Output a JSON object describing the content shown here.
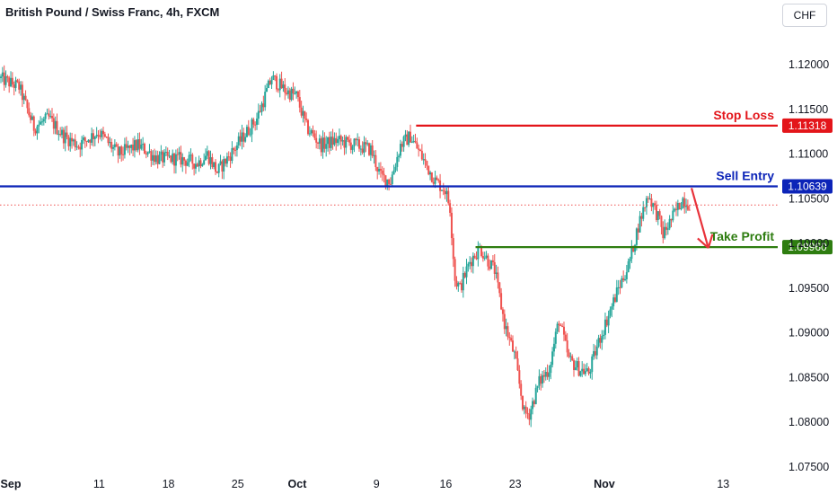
{
  "header": {
    "title": "British Pound / Swiss Franc, 4h, FXCM",
    "currency_button": "CHF"
  },
  "colors": {
    "up": "#26a69a",
    "down": "#ef5350",
    "stop_loss": "#e3151a",
    "sell_entry": "#0c24b8",
    "take_profit": "#2e7d10",
    "last_price_line": "#ef5350",
    "arrow": "#e8323a"
  },
  "chart_data": {
    "type": "candlestick",
    "timeframe": "4h",
    "instrument": "GBPCHF",
    "ylim": [
      1.075,
      1.125
    ],
    "y_ticks": [
      "1.12000",
      "1.11500",
      "1.11000",
      "1.10500",
      "1.10000",
      "1.09500",
      "1.09000",
      "1.08500",
      "1.08000",
      "1.07500"
    ],
    "y_tick_values": [
      1.12,
      1.115,
      1.11,
      1.105,
      1.1,
      1.095,
      1.09,
      1.085,
      1.08,
      1.075
    ],
    "x_ticks": [
      "Sep",
      "11",
      "18",
      "25",
      "Oct",
      "9",
      "16",
      "23",
      "Nov",
      "13"
    ],
    "x_tick_days": [
      0,
      10,
      17,
      24,
      30,
      38,
      45,
      52,
      61,
      73
    ],
    "x_range_days": [
      0,
      78.5
    ],
    "bold_ticks": [
      "Sep",
      "Oct",
      "Nov"
    ],
    "price_path": [
      [
        0,
        1.1185
      ],
      [
        2,
        1.1175
      ],
      [
        3.5,
        1.113
      ],
      [
        5,
        1.114
      ],
      [
        6.5,
        1.112
      ],
      [
        8,
        1.111
      ],
      [
        10,
        1.1125
      ],
      [
        12,
        1.11
      ],
      [
        14,
        1.111
      ],
      [
        16,
        1.1095
      ],
      [
        18,
        1.1095
      ],
      [
        20,
        1.109
      ],
      [
        21,
        1.11
      ],
      [
        22,
        1.108
      ],
      [
        24,
        1.111
      ],
      [
        26,
        1.114
      ],
      [
        27.5,
        1.1185
      ],
      [
        29,
        1.117
      ],
      [
        30,
        1.1165
      ],
      [
        31,
        1.113
      ],
      [
        32.5,
        1.111
      ],
      [
        34,
        1.1115
      ],
      [
        36,
        1.111
      ],
      [
        37.5,
        1.1105
      ],
      [
        38.5,
        1.1075
      ],
      [
        39.5,
        1.107
      ],
      [
        40.5,
        1.111
      ],
      [
        41.5,
        1.112
      ],
      [
        42.5,
        1.11
      ],
      [
        44,
        1.107
      ],
      [
        45,
        1.106
      ],
      [
        45.5,
        1.104
      ],
      [
        46,
        1.096
      ],
      [
        46.5,
        1.095
      ],
      [
        47.5,
        1.098
      ],
      [
        48.5,
        1.0995
      ],
      [
        50,
        1.097
      ],
      [
        51,
        1.091
      ],
      [
        52,
        1.0875
      ],
      [
        53,
        1.081
      ],
      [
        53.5,
        1.081
      ],
      [
        54.5,
        1.0845
      ],
      [
        55.5,
        1.086
      ],
      [
        56.5,
        1.0915
      ],
      [
        57.5,
        1.087
      ],
      [
        58.5,
        1.086
      ],
      [
        59.5,
        1.0855
      ],
      [
        60.5,
        1.089
      ],
      [
        61.5,
        1.092
      ],
      [
        62.5,
        1.095
      ],
      [
        63.5,
        1.0975
      ],
      [
        64.5,
        1.102
      ],
      [
        65.5,
        1.1055
      ],
      [
        66.5,
        1.103
      ],
      [
        67,
        1.101
      ],
      [
        68,
        1.103
      ],
      [
        69,
        1.105
      ],
      [
        69.5,
        1.1045
      ]
    ],
    "levels": [
      {
        "name": "Stop Loss",
        "value": 1.11318,
        "label": "1.11318",
        "start_day": 42
      },
      {
        "name": "Sell Entry",
        "value": 1.10639,
        "label": "1.10639",
        "start_day": 0
      },
      {
        "name": "Take Profit",
        "value": 1.0996,
        "label": "1.09960",
        "start_day": 48
      }
    ],
    "last_price": 1.1043,
    "projection_arrow": {
      "from_day": 69.8,
      "from_value": 1.1062,
      "to_day": 71.5,
      "to_value": 1.0995
    }
  }
}
